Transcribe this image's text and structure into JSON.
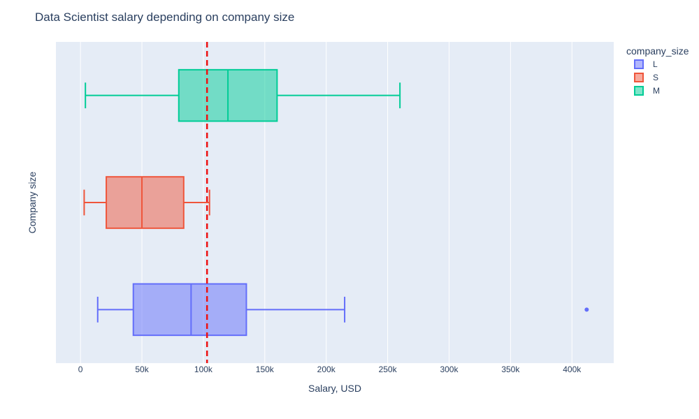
{
  "chart_data": {
    "type": "box",
    "orientation": "horizontal",
    "title": "Data Scientist salary depending on company size",
    "xlabel": "Salary, USD",
    "ylabel": "Company size",
    "xlim": [
      -20000,
      434000
    ],
    "x_ticks": [
      0,
      50000,
      100000,
      150000,
      200000,
      250000,
      300000,
      350000,
      400000
    ],
    "x_tick_labels": [
      "0",
      "50k",
      "100k",
      "150k",
      "200k",
      "250k",
      "300k",
      "350k",
      "400k"
    ],
    "legend_title": "company_size",
    "legend_position": "top-right",
    "reference_line": {
      "value": 103000,
      "color": "#ee1111",
      "style": "dashed"
    },
    "series": [
      {
        "name": "L",
        "color": "#636efa",
        "min": 14000,
        "q1": 43000,
        "median": 90000,
        "q3": 135000,
        "max": 215000,
        "outliers": [
          412000
        ]
      },
      {
        "name": "S",
        "color": "#ef553b",
        "min": 3000,
        "q1": 21000,
        "median": 50000,
        "q3": 84000,
        "max": 105000,
        "outliers": []
      },
      {
        "name": "M",
        "color": "#00cc96",
        "min": 4000,
        "q1": 80000,
        "median": 120000,
        "q3": 160000,
        "max": 260000,
        "outliers": []
      }
    ]
  }
}
